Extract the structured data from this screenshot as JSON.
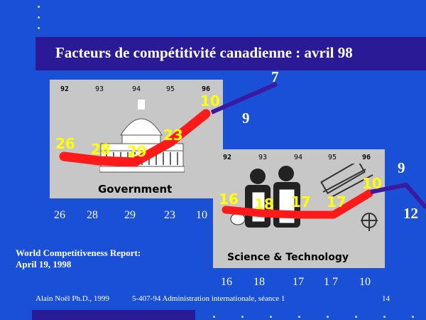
{
  "title": "Facteurs de compétitivité canadienne : avril 98",
  "government": {
    "caption": "Government",
    "years": [
      "92",
      "93",
      "94",
      "95",
      "96"
    ],
    "ranks": [
      "26",
      "28",
      "29",
      "23",
      "10"
    ],
    "projected": [
      "7",
      "9"
    ]
  },
  "science": {
    "caption": "Science & Technology",
    "years": [
      "92",
      "93",
      "94",
      "95",
      "96"
    ],
    "ranks": [
      "16",
      "18",
      "17",
      "17",
      "10"
    ],
    "projected": [
      "9",
      "12"
    ]
  },
  "gov_row": [
    "26",
    "28",
    "29",
    "23",
    "10"
  ],
  "sci_row": [
    "16",
    "18",
    "17",
    "1 7",
    "10"
  ],
  "source_line1": "World Competitiveness Report:",
  "source_line2": "April 19, 1998",
  "footer": {
    "author": "Alain Noël Ph.D., 1999",
    "course": "5-407-94 Administration internationale, séance 1",
    "page": "14"
  },
  "colors": {
    "background": "#1a50d6",
    "title_bar": "#2a1a96",
    "trend": "#ff1a1a",
    "projection": "#3a1aa0",
    "rank_label": "#ffff00"
  }
}
